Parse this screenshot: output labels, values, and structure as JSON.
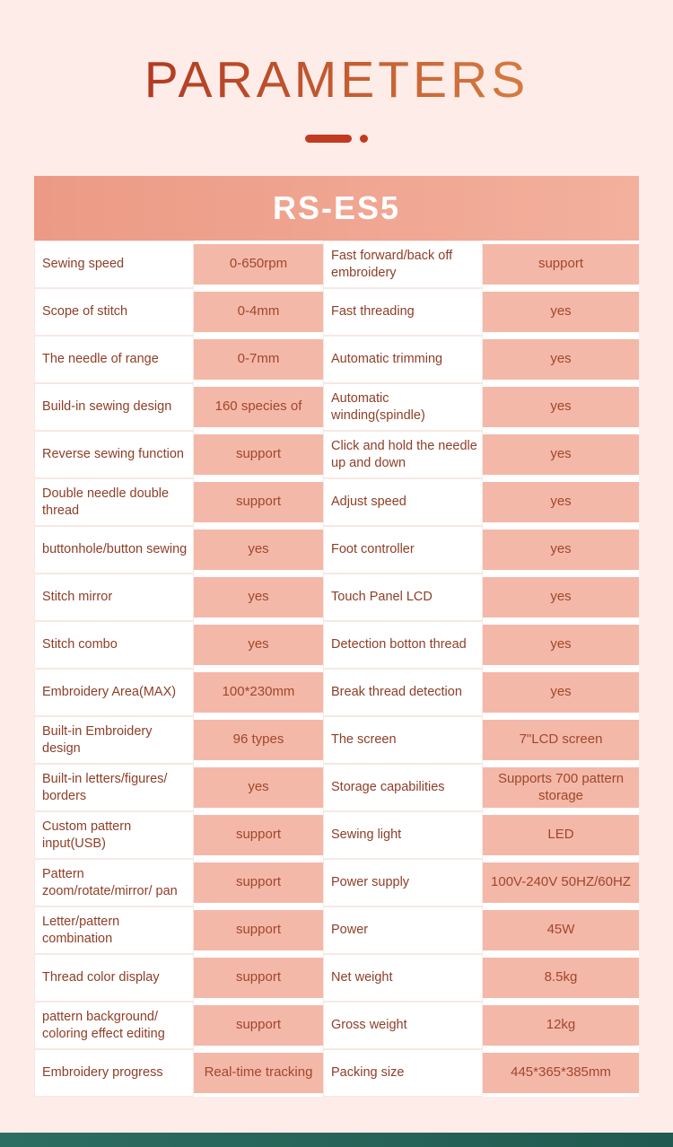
{
  "page": {
    "title": "PARAMETERS",
    "model": "RS-ES5",
    "colors": {
      "background": "#fdece7",
      "accent_red": "#c23a1f",
      "value_cell_pink": "#f4b8a9",
      "banner_salmon": "#ec9a85",
      "label_text": "#8e3e27",
      "value_text": "#a0472a",
      "footer_teal": "#2c6e62"
    }
  },
  "table": {
    "rows": [
      {
        "label_left": "Sewing speed",
        "value_left": "0-650rpm",
        "label_right": "Fast forward/back off embroidery",
        "value_right": "support"
      },
      {
        "label_left": "Scope of stitch",
        "value_left": "0-4mm",
        "label_right": "Fast threading",
        "value_right": "yes"
      },
      {
        "label_left": "The needle of range",
        "value_left": "0-7mm",
        "label_right": "Automatic trimming",
        "value_right": "yes"
      },
      {
        "label_left": "Build-in sewing design",
        "value_left": "160 species of",
        "label_right": "Automatic winding(spindle)",
        "value_right": "yes"
      },
      {
        "label_left": "Reverse sewing function",
        "value_left": "support",
        "label_right": "Click and hold the needle up and down",
        "value_right": "yes"
      },
      {
        "label_left": "Double needle double thread",
        "value_left": "support",
        "label_right": "Adjust speed",
        "value_right": "yes"
      },
      {
        "label_left": "buttonhole/button sewing",
        "value_left": "yes",
        "label_right": "Foot controller",
        "value_right": "yes"
      },
      {
        "label_left": "Stitch mirror",
        "value_left": "yes",
        "label_right": "Touch Panel LCD",
        "value_right": "yes"
      },
      {
        "label_left": "Stitch combo",
        "value_left": "yes",
        "label_right": "Detection botton thread",
        "value_right": "yes"
      },
      {
        "label_left": "Embroidery Area(MAX)",
        "value_left": "100*230mm",
        "label_right": "Break thread detection",
        "value_right": "yes"
      },
      {
        "label_left": "Built-in Embroidery design",
        "value_left": "96 types",
        "label_right": "The screen",
        "value_right": "7\"LCD screen"
      },
      {
        "label_left": "Built-in letters/figures/ borders",
        "value_left": "yes",
        "label_right": "Storage capabilities",
        "value_right": "Supports 700 pattern storage"
      },
      {
        "label_left": "Custom pattern input(USB)",
        "value_left": "support",
        "label_right": "Sewing light",
        "value_right": "LED"
      },
      {
        "label_left": "Pattern zoom/rotate/mirror/ pan",
        "value_left": "support",
        "label_right": "Power supply",
        "value_right": "100V-240V 50HZ/60HZ"
      },
      {
        "label_left": "Letter/pattern combination",
        "value_left": "support",
        "label_right": "Power",
        "value_right": "45W"
      },
      {
        "label_left": "Thread color display",
        "value_left": "support",
        "label_right": "Net weight",
        "value_right": "8.5kg"
      },
      {
        "label_left": "pattern background/ coloring effect editing",
        "value_left": "support",
        "label_right": "Gross weight",
        "value_right": "12kg"
      },
      {
        "label_left": "Embroidery progress",
        "value_left": "Real-time tracking",
        "label_right": "Packing size",
        "value_right": "445*365*385mm"
      }
    ]
  }
}
